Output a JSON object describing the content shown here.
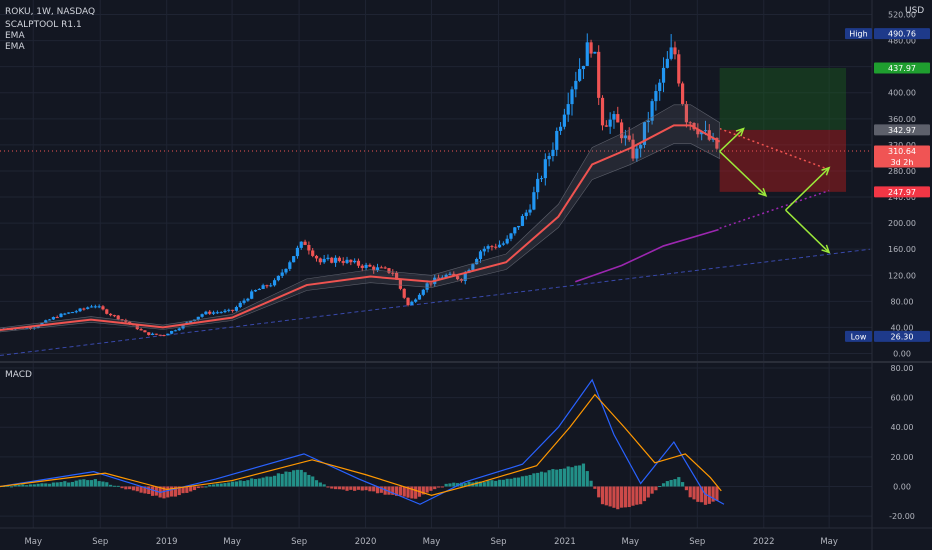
{
  "header": {
    "symbol_line": "ROKU, 1W, NASDAQ",
    "indicators": [
      "SCALPTOOL R1.1",
      "EMA",
      "EMA"
    ],
    "currency": "USD",
    "macd_label": "MACD"
  },
  "price_axis": {
    "ticks": [
      "520.00",
      "480.00",
      "440.00",
      "400.00",
      "360.00",
      "320.00",
      "280.00",
      "240.00",
      "200.00",
      "160.00",
      "120.00",
      "80.00",
      "40.00",
      "0.00"
    ],
    "ymin": -10,
    "ymax": 530
  },
  "macd_axis": {
    "ticks": [
      "80.00",
      "60.00",
      "40.00",
      "20.00",
      "0.00",
      "-20.00"
    ],
    "ymin": -26,
    "ymax": 82
  },
  "x_axis": {
    "labels": [
      {
        "text": "May",
        "date": "2018-05-01"
      },
      {
        "text": "Sep",
        "date": "2018-09-01"
      },
      {
        "text": "2019",
        "date": "2019-01-01"
      },
      {
        "text": "May",
        "date": "2019-05-01"
      },
      {
        "text": "Sep",
        "date": "2019-09-01"
      },
      {
        "text": "2020",
        "date": "2020-01-01"
      },
      {
        "text": "May",
        "date": "2020-05-01"
      },
      {
        "text": "Sep",
        "date": "2020-09-01"
      },
      {
        "text": "2021",
        "date": "2021-01-01"
      },
      {
        "text": "May",
        "date": "2021-05-01"
      },
      {
        "text": "Sep",
        "date": "2021-09-01"
      },
      {
        "text": "2022",
        "date": "2022-01-01"
      },
      {
        "text": "May",
        "date": "2022-05-01"
      }
    ]
  },
  "badges": [
    {
      "label": "High",
      "value": "490.76",
      "price": 490.76,
      "color": "#1e3a8a"
    },
    {
      "label": "",
      "value": "437.97",
      "price": 437.97,
      "color": "#1f9e2f"
    },
    {
      "label": "",
      "value": "342.97",
      "price": 342.97,
      "color": "#5d606b"
    },
    {
      "label": "",
      "value": "310.64",
      "sub": "3d 2h",
      "price": 310.64,
      "color": "#f05454"
    },
    {
      "label": "",
      "value": "247.97",
      "price": 247.97,
      "color": "#f23645"
    },
    {
      "label": "Low",
      "value": "26.30",
      "price": 26.3,
      "color": "#1e3a8a"
    }
  ],
  "colors": {
    "up": "#2196f3",
    "down": "#f05454",
    "neutral": "#787b86",
    "ema_fast": "#ef5350",
    "ema_slow": "#9c27b0",
    "macd_line": "#2962ff",
    "signal_line": "#ff9800",
    "trend_line": "#3949ab",
    "arrow": "#9be83a",
    "profit_zone": "#1b5e20",
    "loss_zone": "#b71c1c"
  },
  "chart_data": {
    "type": "candlestick",
    "title": "ROKU, 1W, NASDAQ",
    "xlim": [
      "2018-03-01",
      "2022-07-15"
    ],
    "ylim": [
      -10,
      530
    ],
    "price_path": [
      [
        "2018-03-01",
        38
      ],
      [
        "2018-05-01",
        40
      ],
      [
        "2018-06-15",
        58
      ],
      [
        "2018-08-01",
        68
      ],
      [
        "2018-08-20",
        75
      ],
      [
        "2018-09-15",
        62
      ],
      [
        "2018-10-20",
        48
      ],
      [
        "2018-11-25",
        30
      ],
      [
        "2018-12-25",
        28
      ],
      [
        "2019-01-20",
        38
      ],
      [
        "2019-03-10",
        62
      ],
      [
        "2019-05-01",
        65
      ],
      [
        "2019-06-10",
        95
      ],
      [
        "2019-07-20",
        110
      ],
      [
        "2019-08-25",
        155
      ],
      [
        "2019-09-10",
        172
      ],
      [
        "2019-10-10",
        140
      ],
      [
        "2019-11-10",
        145
      ],
      [
        "2019-12-10",
        138
      ],
      [
        "2020-01-10",
        132
      ],
      [
        "2020-02-20",
        125
      ],
      [
        "2020-03-20",
        72
      ],
      [
        "2020-04-20",
        105
      ],
      [
        "2020-05-25",
        120
      ],
      [
        "2020-06-25",
        115
      ],
      [
        "2020-08-01",
        160
      ],
      [
        "2020-09-15",
        170
      ],
      [
        "2020-10-25",
        220
      ],
      [
        "2020-12-10",
        320
      ],
      [
        "2021-01-10",
        405
      ],
      [
        "2021-02-05",
        455
      ],
      [
        "2021-02-20",
        480
      ],
      [
        "2021-03-10",
        360
      ],
      [
        "2021-04-05",
        355
      ],
      [
        "2021-05-10",
        300
      ],
      [
        "2021-06-10",
        380
      ],
      [
        "2021-07-05",
        440
      ],
      [
        "2021-07-20",
        470
      ],
      [
        "2021-08-10",
        365
      ],
      [
        "2021-09-10",
        340
      ],
      [
        "2021-10-12",
        310
      ]
    ],
    "series": [
      {
        "name": "EMA",
        "points": [
          [
            "2018-03-01",
            36
          ],
          [
            "2018-08-15",
            52
          ],
          [
            "2018-12-25",
            40
          ],
          [
            "2019-05-01",
            55
          ],
          [
            "2019-09-15",
            105
          ],
          [
            "2020-01-10",
            118
          ],
          [
            "2020-05-01",
            110
          ],
          [
            "2020-09-15",
            140
          ],
          [
            "2020-12-20",
            210
          ],
          [
            "2021-02-20",
            290
          ],
          [
            "2021-05-01",
            315
          ],
          [
            "2021-07-20",
            350
          ],
          [
            "2021-08-20",
            350
          ],
          [
            "2021-10-12",
            325
          ]
        ]
      },
      {
        "name": "EMA",
        "points": [
          [
            "2021-01-20",
            110
          ],
          [
            "2021-04-15",
            135
          ],
          [
            "2021-07-01",
            165
          ],
          [
            "2021-10-10",
            190
          ]
        ]
      }
    ],
    "trend_line": {
      "from": [
        "2018-03-01",
        -3
      ],
      "to": [
        "2022-07-15",
        160
      ]
    },
    "projection_dotted_red": {
      "from": [
        "2021-10-12",
        345
      ],
      "to": [
        "2022-05-01",
        282
      ]
    },
    "projection_dotted_purple": {
      "from": [
        "2021-10-12",
        192
      ],
      "to": [
        "2022-05-01",
        250
      ]
    },
    "position": {
      "start": "2021-10-12",
      "end": "2022-06-01",
      "entry": 342.97,
      "target": 437.97,
      "stop": 247.97
    },
    "arrows": [
      {
        "from": [
          "2021-10-12",
          310
        ],
        "to": [
          "2021-11-25",
          345
        ]
      },
      {
        "from": [
          "2021-10-12",
          310
        ],
        "to": [
          "2022-01-05",
          242
        ]
      },
      {
        "from": [
          "2022-02-10",
          220
        ],
        "to": [
          "2022-05-01",
          285
        ]
      },
      {
        "from": [
          "2022-02-10",
          220
        ],
        "to": [
          "2022-05-01",
          155
        ]
      }
    ],
    "macd": {
      "histogram_path": [
        [
          "2018-03-01",
          0
        ],
        [
          "2018-06-01",
          2
        ],
        [
          "2018-08-20",
          5
        ],
        [
          "2018-11-01",
          -3
        ],
        [
          "2019-01-01",
          -8
        ],
        [
          "2019-04-01",
          2
        ],
        [
          "2019-07-01",
          6
        ],
        [
          "2019-09-01",
          12
        ],
        [
          "2019-11-01",
          -2
        ],
        [
          "2020-01-01",
          -3
        ],
        [
          "2020-04-01",
          -8
        ],
        [
          "2020-06-01",
          2
        ],
        [
          "2020-09-01",
          4
        ],
        [
          "2020-11-01",
          8
        ],
        [
          "2020-12-20",
          12
        ],
        [
          "2021-02-05",
          15
        ],
        [
          "2021-03-10",
          -12
        ],
        [
          "2021-04-10",
          -15
        ],
        [
          "2021-05-20",
          -12
        ],
        [
          "2021-07-05",
          4
        ],
        [
          "2021-08-01",
          6
        ],
        [
          "2021-08-20",
          -8
        ],
        [
          "2021-09-20",
          -13
        ],
        [
          "2021-10-12",
          -8
        ]
      ],
      "macd_line": [
        [
          "2018-03-01",
          0
        ],
        [
          "2018-08-20",
          10
        ],
        [
          "2018-12-20",
          -4
        ],
        [
          "2019-04-01",
          5
        ],
        [
          "2019-09-10",
          22
        ],
        [
          "2019-12-20",
          5
        ],
        [
          "2020-04-10",
          -12
        ],
        [
          "2020-07-01",
          3
        ],
        [
          "2020-10-15",
          15
        ],
        [
          "2020-12-20",
          40
        ],
        [
          "2021-02-20",
          72
        ],
        [
          "2021-04-01",
          35
        ],
        [
          "2021-05-20",
          2
        ],
        [
          "2021-07-20",
          30
        ],
        [
          "2021-09-15",
          -5
        ],
        [
          "2021-10-20",
          -12
        ]
      ],
      "signal_line": [
        [
          "2018-03-01",
          0
        ],
        [
          "2018-09-10",
          9
        ],
        [
          "2019-01-01",
          -2
        ],
        [
          "2019-05-01",
          4
        ],
        [
          "2019-09-25",
          18
        ],
        [
          "2020-01-01",
          8
        ],
        [
          "2020-05-01",
          -6
        ],
        [
          "2020-08-01",
          3
        ],
        [
          "2020-11-10",
          14
        ],
        [
          "2021-01-10",
          40
        ],
        [
          "2021-02-25",
          62
        ],
        [
          "2021-04-20",
          40
        ],
        [
          "2021-06-15",
          16
        ],
        [
          "2021-08-10",
          22
        ],
        [
          "2021-09-25",
          6
        ],
        [
          "2021-10-15",
          -3
        ]
      ]
    }
  }
}
